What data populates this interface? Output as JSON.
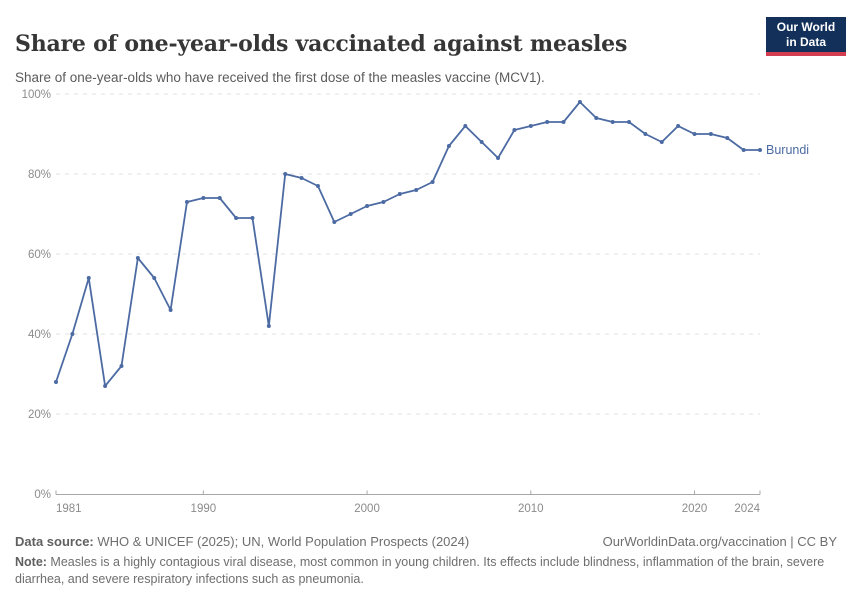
{
  "logo": {
    "line1": "Our World",
    "line2": "in Data",
    "bg_color": "#12305a",
    "stripe_color": "#d23d4f"
  },
  "footer": {
    "datasource_label": "Data source:",
    "datasource_text": " WHO & UNICEF (2025); UN, World Population Prospects (2024)",
    "rights": "OurWorldinData.org/vaccination | CC BY",
    "note_label": "Note:",
    "note_text": " Measles is a highly contagious viral disease, most common in young children. Its effects include blindness, inflammation of the brain, severe diarrhea, and severe respiratory infections such as pneumonia."
  },
  "chart_data": {
    "type": "line",
    "title": "Share of one-year-olds vaccinated against measles",
    "subtitle": "Share of one-year-olds who have received the first dose of the measles vaccine (MCV1).",
    "xlabel": "",
    "ylabel": "",
    "y_format": "percent",
    "grid": true,
    "legend_position": "end-of-line-label",
    "xlim": [
      1981,
      2024
    ],
    "ylim": [
      0,
      100
    ],
    "x_ticks": [
      1981,
      1990,
      2000,
      2010,
      2020,
      2024
    ],
    "y_ticks": [
      0,
      20,
      40,
      60,
      80,
      100
    ],
    "x": [
      1981,
      1982,
      1983,
      1984,
      1985,
      1986,
      1987,
      1988,
      1989,
      1990,
      1991,
      1992,
      1993,
      1994,
      1995,
      1996,
      1997,
      1998,
      1999,
      2000,
      2001,
      2002,
      2003,
      2004,
      2005,
      2006,
      2007,
      2008,
      2009,
      2010,
      2011,
      2012,
      2013,
      2014,
      2015,
      2016,
      2017,
      2018,
      2019,
      2020,
      2021,
      2022,
      2023,
      2024
    ],
    "series": [
      {
        "name": "Burundi",
        "color": "#4c6ba3",
        "values": [
          28,
          40,
          54,
          27,
          32,
          59,
          54,
          46,
          73,
          74,
          74,
          69,
          69,
          42,
          80,
          79,
          77,
          68,
          70,
          72,
          73,
          75,
          76,
          78,
          87,
          92,
          88,
          84,
          91,
          92,
          93,
          93,
          98,
          94,
          93,
          93,
          90,
          88,
          92,
          90,
          90,
          89,
          86,
          86
        ]
      }
    ]
  }
}
